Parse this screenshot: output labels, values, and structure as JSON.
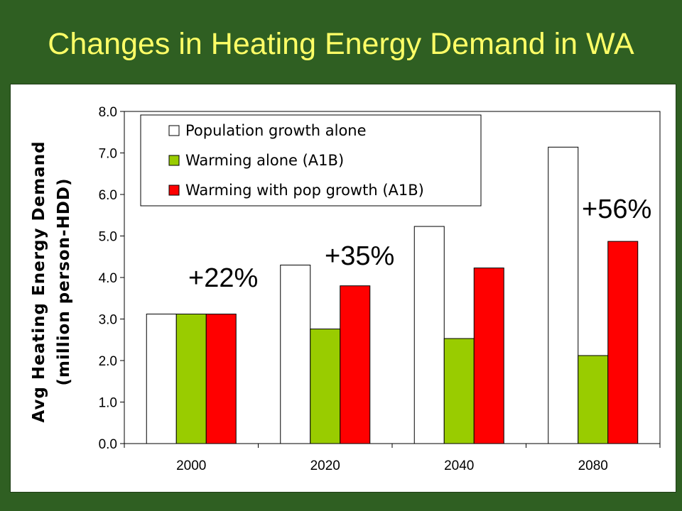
{
  "slide": {
    "title": "Changes in Heating Energy Demand in WA"
  },
  "chart_data": {
    "type": "bar",
    "title": "",
    "ylabel_line1": "Avg Heating Energy Demand",
    "ylabel_line2": "(million person-HDD)",
    "xlabel": "",
    "categories": [
      "2000",
      "2020",
      "2040",
      "2080"
    ],
    "ylim": [
      0,
      8
    ],
    "yticks": [
      "0.0",
      "1.0",
      "2.0",
      "3.0",
      "4.0",
      "5.0",
      "6.0",
      "7.0",
      "8.0"
    ],
    "grid": false,
    "legend_position": "top-left",
    "series": [
      {
        "name": "Population growth alone",
        "color": "#ffffff",
        "values": [
          3.12,
          4.3,
          5.23,
          7.14
        ]
      },
      {
        "name": "Warming alone (A1B)",
        "color": "#99cc00",
        "values": [
          3.12,
          2.76,
          2.53,
          2.12
        ]
      },
      {
        "name": "Warming with pop growth (A1B)",
        "color": "#ff0000",
        "values": [
          3.12,
          3.8,
          4.23,
          4.87
        ]
      }
    ],
    "annotations": [
      "+22%",
      "+35%",
      "+56%"
    ]
  }
}
